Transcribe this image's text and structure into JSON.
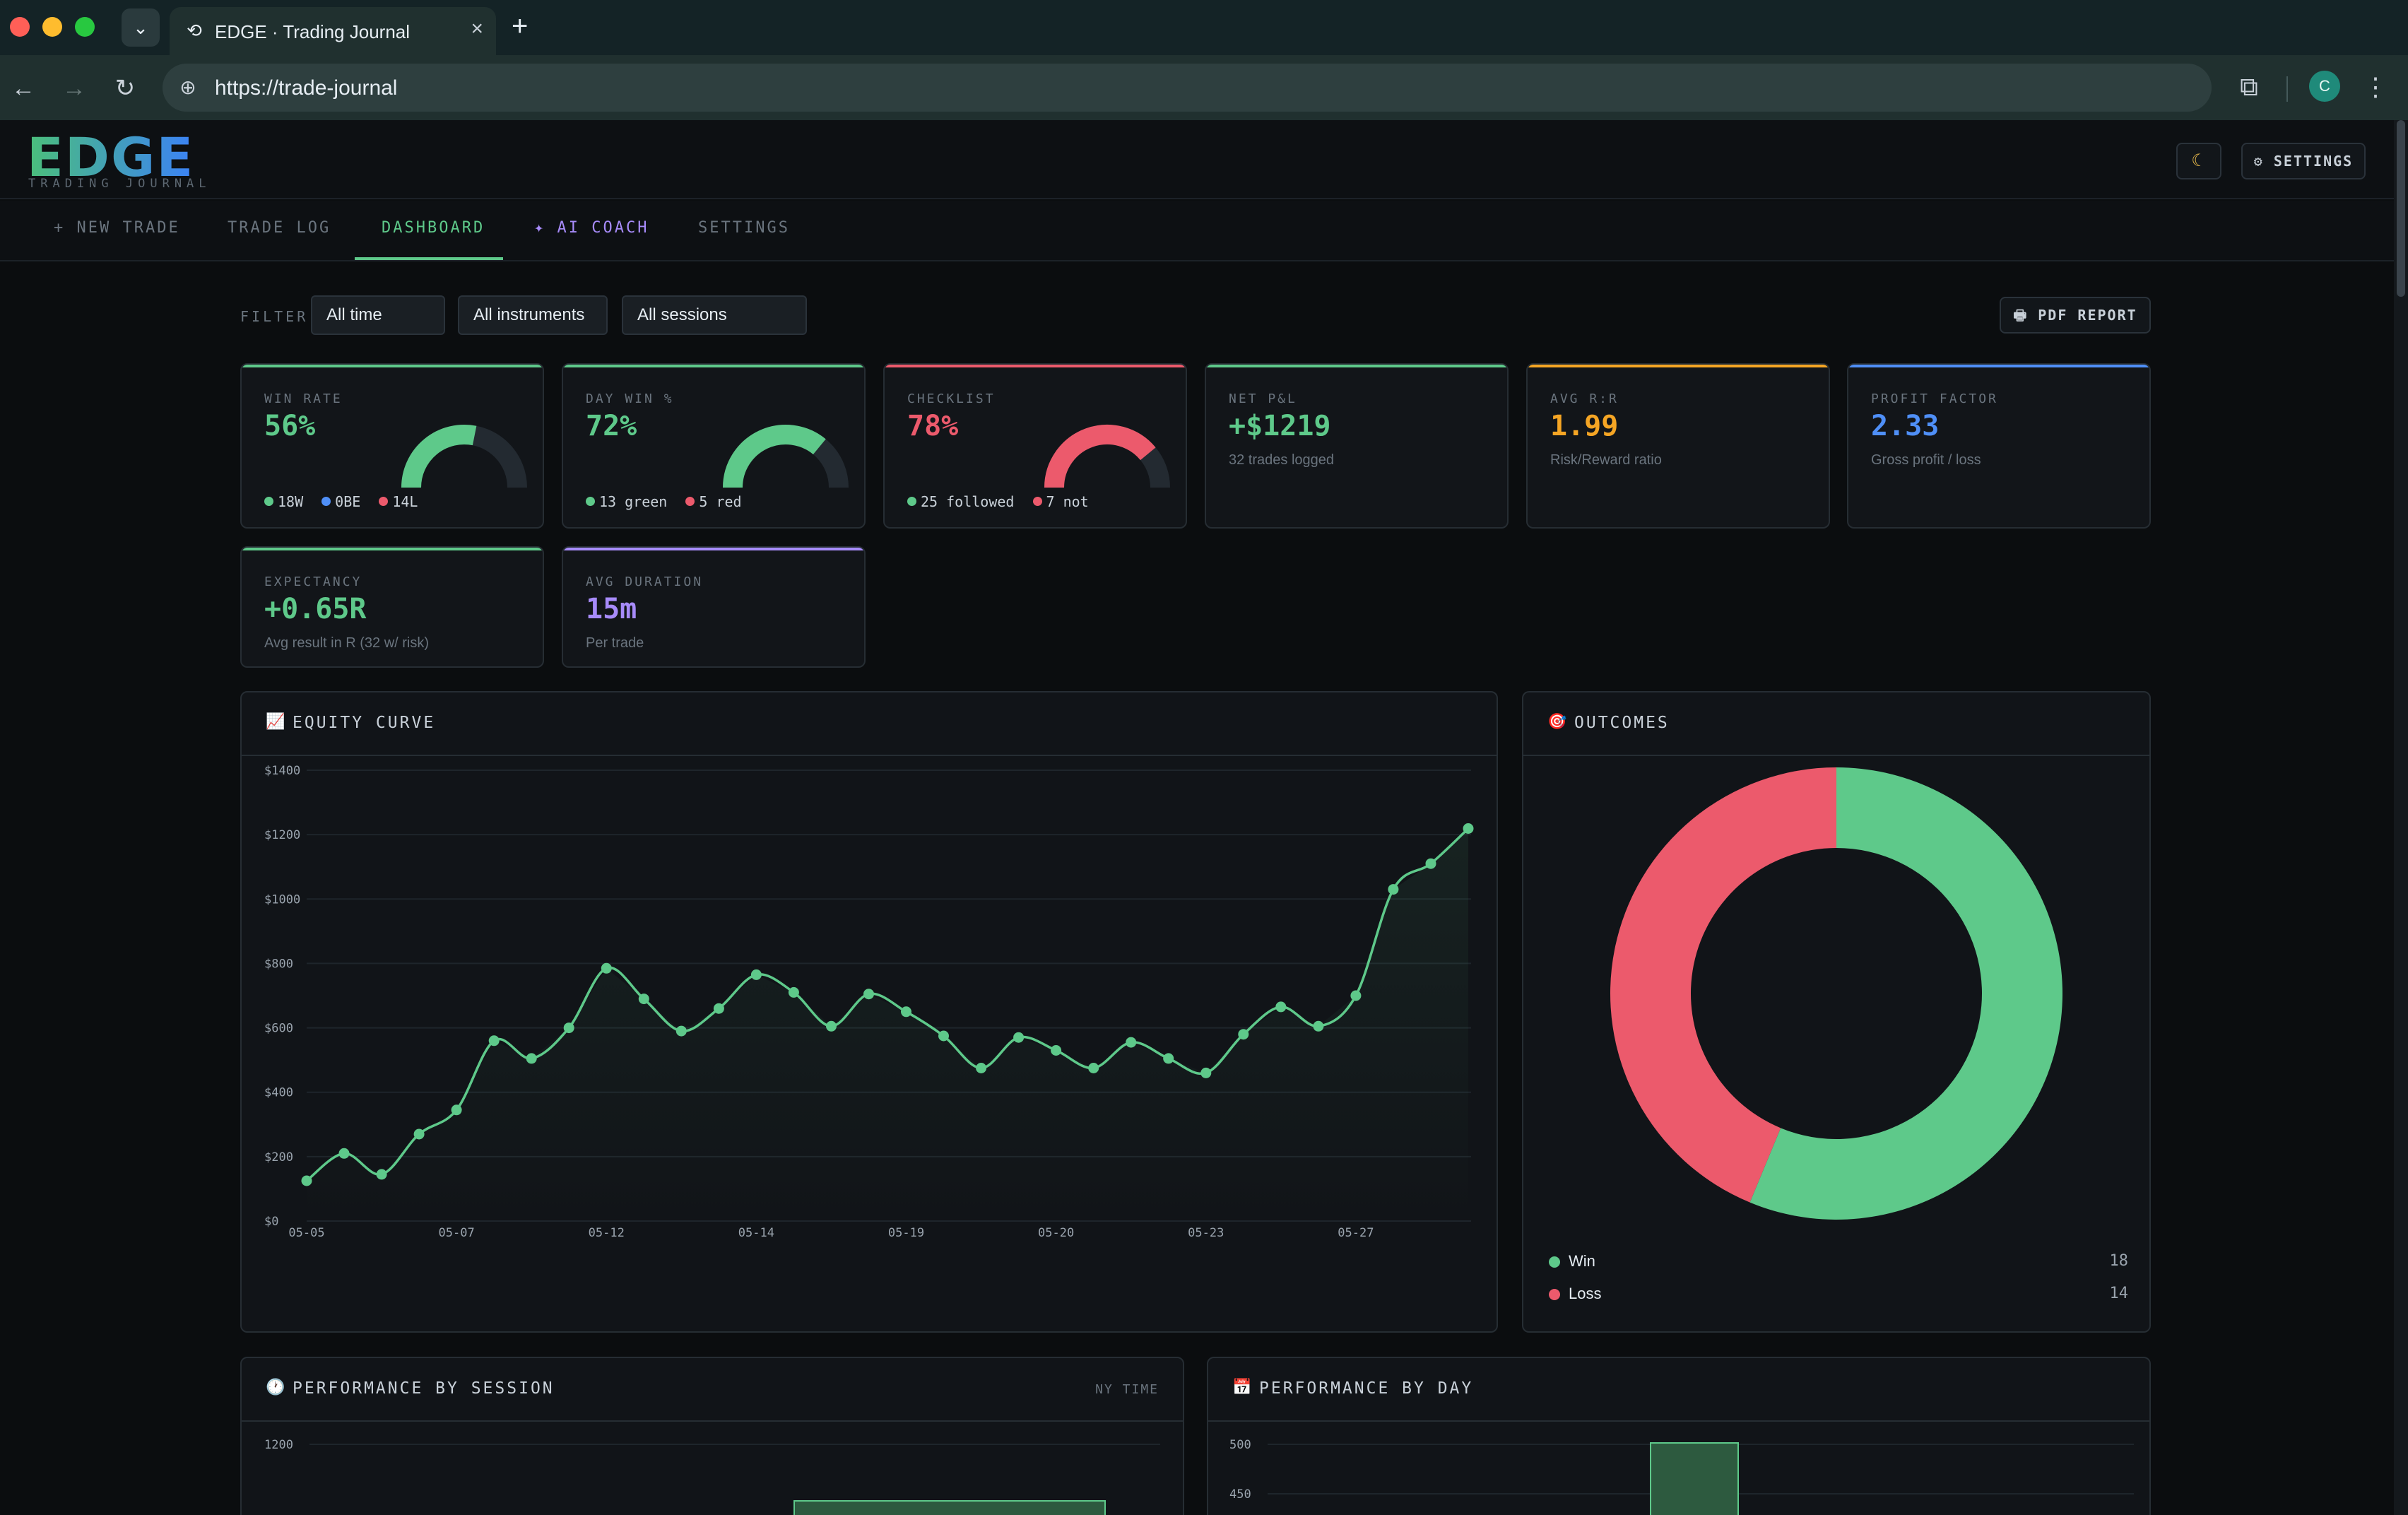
{
  "browser": {
    "tab_title": "EDGE · Trading Journal",
    "url": "https://trade-journal",
    "profile_initial": "C"
  },
  "app": {
    "logo": "EDGE",
    "logo_subtitle": "TRADING JOURNAL",
    "settings_label": "⚙ SETTINGS",
    "theme_icon": "moon-icon"
  },
  "nav": {
    "tabs": [
      {
        "label": "+ NEW TRADE",
        "active": false
      },
      {
        "label": "TRADE LOG",
        "active": false
      },
      {
        "label": "DASHBOARD",
        "active": true
      },
      {
        "label": "✦ AI COACH",
        "active": false
      },
      {
        "label": "SETTINGS",
        "active": false
      }
    ]
  },
  "filter": {
    "label": "FILTER",
    "time": "All time",
    "instruments": "All instruments",
    "sessions": "All sessions",
    "pdf_label": "PDF REPORT"
  },
  "colors": {
    "green": "#5ec98a",
    "red": "#ec5a6c",
    "blue": "#4f8ff7",
    "orange": "#f5a524",
    "purple": "#a78bfa"
  },
  "stats": {
    "win_rate": {
      "label": "WIN RATE",
      "value": "56%",
      "gauge": 0.5625,
      "legend": [
        "18W",
        "0BE",
        "14L"
      ]
    },
    "day_win": {
      "label": "DAY WIN %",
      "value": "72%",
      "gauge": 0.72,
      "legend": [
        "13 green",
        "5 red"
      ]
    },
    "checklist": {
      "label": "CHECKLIST",
      "value": "78%",
      "gauge": 0.78,
      "legend": [
        "25 followed",
        "7 not"
      ]
    },
    "net_pnl": {
      "label": "NET P&L",
      "value": "+$1219",
      "sub": "32 trades logged"
    },
    "avg_rr": {
      "label": "AVG R:R",
      "value": "1.99",
      "sub": "Risk/Reward ratio"
    },
    "profit_factor": {
      "label": "PROFIT FACTOR",
      "value": "2.33",
      "sub": "Gross profit / loss"
    },
    "expectancy": {
      "label": "EXPECTANCY",
      "value": "+0.65R",
      "sub": "Avg result in R (32 w/ risk)"
    },
    "avg_duration": {
      "label": "AVG DURATION",
      "value": "15m",
      "sub": "Per trade"
    }
  },
  "panels": {
    "equity_title": "EQUITY CURVE",
    "outcomes_title": "OUTCOMES",
    "session_title": "PERFORMANCE BY SESSION",
    "session_note": "NY TIME",
    "day_title": "PERFORMANCE BY DAY"
  },
  "chart_data": [
    {
      "type": "line",
      "title": "EQUITY CURVE",
      "x_ticks": [
        "05-05",
        "05-07",
        "05-12",
        "05-14",
        "05-19",
        "05-20",
        "05-23",
        "05-27"
      ],
      "y_ticks": [
        "$0",
        "$200",
        "$400",
        "$600",
        "$800",
        "$1000",
        "$1200",
        "$1400"
      ],
      "ylim": [
        0,
        1400
      ],
      "values": [
        125,
        210,
        145,
        270,
        345,
        560,
        505,
        600,
        785,
        690,
        590,
        660,
        765,
        710,
        605,
        705,
        650,
        575,
        475,
        570,
        530,
        475,
        555,
        505,
        460,
        580,
        665,
        605,
        700,
        1030,
        1110,
        1219
      ],
      "grid": true
    },
    {
      "type": "pie",
      "title": "OUTCOMES",
      "categories": [
        "Win",
        "Loss"
      ],
      "values": [
        18,
        14
      ]
    },
    {
      "type": "bar",
      "title": "PERFORMANCE BY SESSION",
      "y_ticks": [
        "1200"
      ],
      "values": [
        1180
      ]
    },
    {
      "type": "bar",
      "title": "PERFORMANCE BY DAY",
      "y_ticks": [
        "500",
        "450"
      ],
      "values": [
        500
      ]
    }
  ]
}
